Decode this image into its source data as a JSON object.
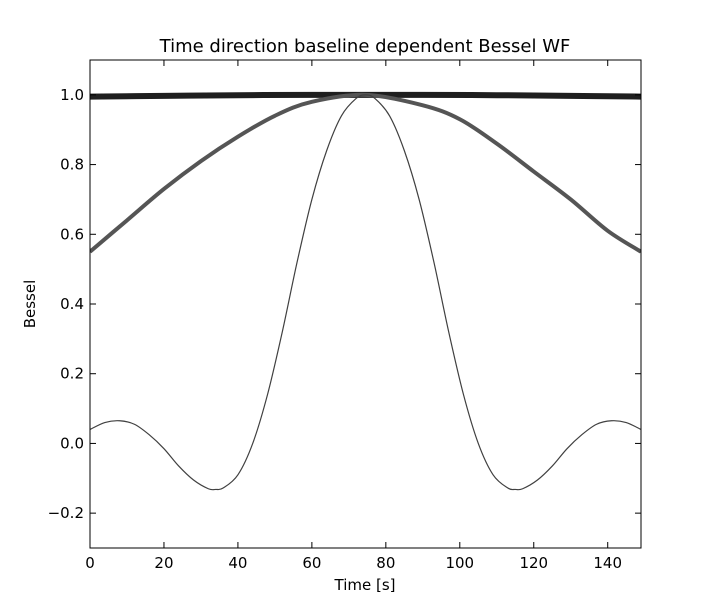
{
  "chart_data": {
    "type": "line",
    "title": "Time direction baseline dependent Bessel WF",
    "xlabel": "Time [s]",
    "ylabel": "Bessel",
    "xlim": [
      0,
      149
    ],
    "ylim": [
      -0.3,
      1.1
    ],
    "xticks": [
      0,
      20,
      40,
      60,
      80,
      100,
      120,
      140
    ],
    "yticks": [
      -0.2,
      0.0,
      0.2,
      0.4,
      0.6,
      0.8,
      1.0
    ],
    "xtick_labels": [
      "0",
      "20",
      "40",
      "60",
      "80",
      "100",
      "120",
      "140"
    ],
    "ytick_labels": [
      "−0.2",
      "0.0",
      "0.2",
      "0.4",
      "0.6",
      "0.8",
      "1.0"
    ],
    "grid": false,
    "legend": "none",
    "series": [
      {
        "color": "#1f1f1f",
        "line_weight": "thick",
        "x": [
          0,
          20,
          40,
          60,
          74.5,
          90,
          110,
          130,
          149
        ],
        "y": [
          0.995,
          0.997,
          0.999,
          1.0,
          1.0,
          1.0,
          0.999,
          0.997,
          0.995
        ]
      },
      {
        "color": "#555555",
        "line_weight": "medium",
        "x": [
          0,
          10,
          20,
          30,
          40,
          50,
          60,
          74.5,
          90,
          100,
          110,
          120,
          130,
          140,
          149
        ],
        "y": [
          0.55,
          0.64,
          0.73,
          0.81,
          0.88,
          0.94,
          0.98,
          1.0,
          0.97,
          0.93,
          0.86,
          0.78,
          0.7,
          0.61,
          0.55
        ]
      },
      {
        "color": "#404040",
        "line_weight": "thin",
        "x": [
          0,
          4,
          8,
          12,
          16,
          20,
          24,
          28,
          32,
          34,
          36,
          40,
          44,
          48,
          52,
          56,
          60,
          64,
          68,
          72,
          74.5,
          77,
          81,
          85,
          89,
          93,
          97,
          101,
          105,
          109,
          113,
          115,
          117,
          121,
          125,
          129,
          133,
          137,
          141,
          145,
          149
        ],
        "y": [
          0.04,
          0.06,
          0.065,
          0.055,
          0.025,
          -0.015,
          -0.065,
          -0.105,
          -0.13,
          -0.132,
          -0.128,
          -0.09,
          0.0,
          0.14,
          0.32,
          0.52,
          0.7,
          0.84,
          0.94,
          0.99,
          1.0,
          0.99,
          0.94,
          0.84,
          0.7,
          0.52,
          0.32,
          0.14,
          0.0,
          -0.09,
          -0.128,
          -0.132,
          -0.13,
          -0.105,
          -0.065,
          -0.015,
          0.025,
          0.055,
          0.065,
          0.06,
          0.04
        ]
      }
    ]
  }
}
